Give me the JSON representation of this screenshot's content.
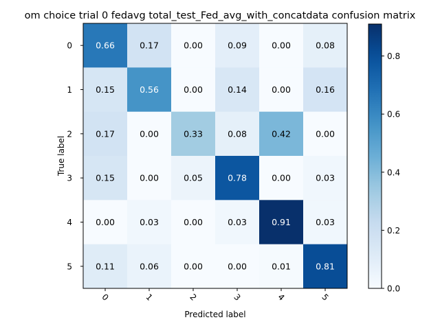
{
  "chart_data": {
    "type": "heatmap",
    "title": "om choice trial 0 fedavg total_test_Fed_avg_with_concatdata confusion matrix",
    "xlabel": "Predicted label",
    "ylabel": "True label",
    "x_categories": [
      "0",
      "1",
      "2",
      "3",
      "4",
      "5"
    ],
    "y_categories": [
      "0",
      "1",
      "2",
      "3",
      "4",
      "5"
    ],
    "values": [
      [
        0.66,
        0.17,
        0.0,
        0.09,
        0.0,
        0.08
      ],
      [
        0.15,
        0.56,
        0.0,
        0.14,
        0.0,
        0.16
      ],
      [
        0.17,
        0.0,
        0.33,
        0.08,
        0.42,
        0.0
      ],
      [
        0.15,
        0.0,
        0.05,
        0.78,
        0.0,
        0.03
      ],
      [
        0.0,
        0.03,
        0.0,
        0.03,
        0.91,
        0.03
      ],
      [
        0.11,
        0.06,
        0.0,
        0.0,
        0.01,
        0.81
      ]
    ],
    "value_format": "0.00",
    "colormap": "Blues",
    "colorbar": {
      "range": [
        0.0,
        0.91
      ],
      "ticks": [
        0.0,
        0.2,
        0.4,
        0.6,
        0.8
      ],
      "tick_labels": [
        "0.0",
        "0.2",
        "0.4",
        "0.6",
        "0.8"
      ]
    },
    "x_tick_rotation_deg": 45,
    "grid": false,
    "legend": "none",
    "text_colors": {
      "dark": "#000000",
      "light": "#ffffff"
    }
  }
}
